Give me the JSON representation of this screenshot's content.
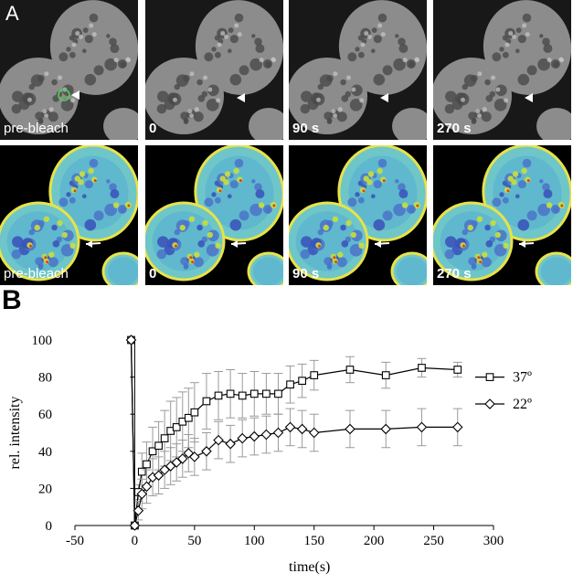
{
  "panel_a": {
    "letter": "A",
    "rows": [
      {
        "style": "gray",
        "tiles": [
          {
            "label": "pre-bleach"
          },
          {
            "label": "0"
          },
          {
            "label": "90 s"
          },
          {
            "label": "270 s"
          }
        ]
      },
      {
        "style": "pseudocolor",
        "tiles": [
          {
            "label": "pre-bleach"
          },
          {
            "label": "0"
          },
          {
            "label": "90 s"
          },
          {
            "label": "270 s"
          }
        ]
      }
    ]
  },
  "panel_b": {
    "letter": "B"
  },
  "chart_data": {
    "type": "line",
    "xlabel": "time(s)",
    "ylabel": "rel. intensity",
    "xlim": [
      -50,
      300
    ],
    "ylim": [
      0,
      100
    ],
    "xticks": [
      -50,
      0,
      50,
      100,
      150,
      200,
      250,
      300
    ],
    "yticks": [
      0,
      20,
      40,
      60,
      80,
      100
    ],
    "grid": false,
    "legend_position": "right",
    "series": [
      {
        "name": "37º",
        "marker": "square",
        "color": "#000000",
        "errorbar_color": "#9a9a9a",
        "points": [
          {
            "x": -3,
            "y": 100,
            "err": 0
          },
          {
            "x": 0,
            "y": 0,
            "err": 0
          },
          {
            "x": 3,
            "y": 18,
            "err": 4
          },
          {
            "x": 6,
            "y": 29,
            "err": 10
          },
          {
            "x": 10,
            "y": 33,
            "err": 12
          },
          {
            "x": 15,
            "y": 40,
            "err": 13
          },
          {
            "x": 20,
            "y": 43,
            "err": 13
          },
          {
            "x": 25,
            "y": 47,
            "err": 15
          },
          {
            "x": 30,
            "y": 51,
            "err": 16
          },
          {
            "x": 35,
            "y": 53,
            "err": 16
          },
          {
            "x": 40,
            "y": 56,
            "err": 16
          },
          {
            "x": 45,
            "y": 58,
            "err": 16
          },
          {
            "x": 50,
            "y": 61,
            "err": 16
          },
          {
            "x": 60,
            "y": 67,
            "err": 15
          },
          {
            "x": 70,
            "y": 70,
            "err": 13
          },
          {
            "x": 80,
            "y": 71,
            "err": 13
          },
          {
            "x": 90,
            "y": 70,
            "err": 12
          },
          {
            "x": 100,
            "y": 71,
            "err": 12
          },
          {
            "x": 110,
            "y": 71,
            "err": 11
          },
          {
            "x": 120,
            "y": 71,
            "err": 11
          },
          {
            "x": 130,
            "y": 76,
            "err": 10
          },
          {
            "x": 140,
            "y": 78,
            "err": 9
          },
          {
            "x": 150,
            "y": 81,
            "err": 8
          },
          {
            "x": 180,
            "y": 84,
            "err": 7
          },
          {
            "x": 210,
            "y": 81,
            "err": 7
          },
          {
            "x": 240,
            "y": 85,
            "err": 5
          },
          {
            "x": 270,
            "y": 84,
            "err": 4
          }
        ]
      },
      {
        "name": "22º",
        "marker": "diamond",
        "color": "#000000",
        "errorbar_color": "#9a9a9a",
        "points": [
          {
            "x": -3,
            "y": 100,
            "err": 0
          },
          {
            "x": 0,
            "y": 0,
            "err": 0
          },
          {
            "x": 3,
            "y": 8,
            "err": 5
          },
          {
            "x": 6,
            "y": 17,
            "err": 8
          },
          {
            "x": 10,
            "y": 21,
            "err": 9
          },
          {
            "x": 15,
            "y": 26,
            "err": 10
          },
          {
            "x": 20,
            "y": 27,
            "err": 10
          },
          {
            "x": 25,
            "y": 30,
            "err": 10
          },
          {
            "x": 30,
            "y": 32,
            "err": 10
          },
          {
            "x": 35,
            "y": 34,
            "err": 10
          },
          {
            "x": 40,
            "y": 36,
            "err": 10
          },
          {
            "x": 45,
            "y": 39,
            "err": 10
          },
          {
            "x": 50,
            "y": 37,
            "err": 10
          },
          {
            "x": 60,
            "y": 40,
            "err": 10
          },
          {
            "x": 70,
            "y": 46,
            "err": 10
          },
          {
            "x": 80,
            "y": 44,
            "err": 10
          },
          {
            "x": 90,
            "y": 47,
            "err": 10
          },
          {
            "x": 100,
            "y": 48,
            "err": 10
          },
          {
            "x": 110,
            "y": 49,
            "err": 10
          },
          {
            "x": 120,
            "y": 50,
            "err": 10
          },
          {
            "x": 130,
            "y": 53,
            "err": 10
          },
          {
            "x": 140,
            "y": 52,
            "err": 10
          },
          {
            "x": 150,
            "y": 50,
            "err": 10
          },
          {
            "x": 180,
            "y": 52,
            "err": 10
          },
          {
            "x": 210,
            "y": 52,
            "err": 10
          },
          {
            "x": 240,
            "y": 53,
            "err": 10
          },
          {
            "x": 270,
            "y": 53,
            "err": 10
          }
        ]
      }
    ]
  }
}
